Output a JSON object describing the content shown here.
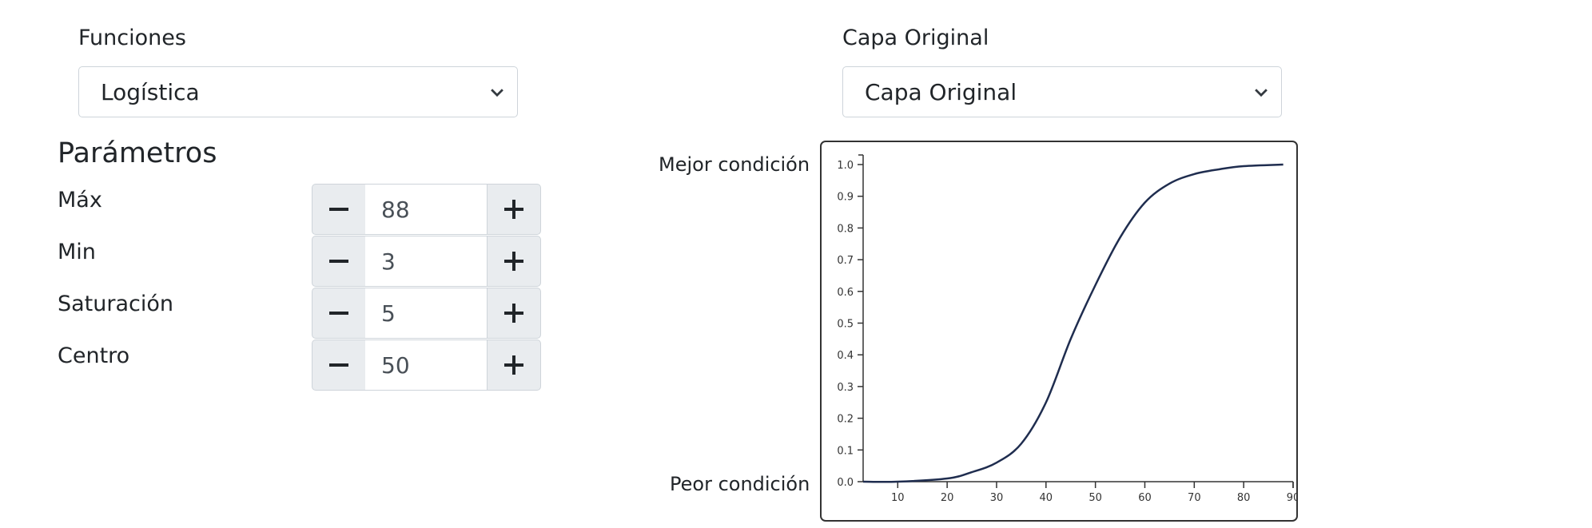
{
  "functions": {
    "label": "Funciones",
    "selected": "Logística"
  },
  "layer": {
    "label": "Capa Original",
    "selected": "Capa Original"
  },
  "params": {
    "title": "Parámetros",
    "items": [
      {
        "label": "Máx",
        "value": "88"
      },
      {
        "label": "Min",
        "value": "3"
      },
      {
        "label": "Saturación",
        "value": "5"
      },
      {
        "label": "Centro",
        "value": "50"
      }
    ]
  },
  "chart": {
    "best_label": "Mejor condición",
    "worst_label": "Peor condición"
  },
  "icons": {
    "minus": "minus-icon",
    "plus": "plus-icon",
    "dropdown": "chevron-down-icon"
  },
  "colors": {
    "curve": "#1f2d4f",
    "stepper_bg": "#e9ecef",
    "border": "#ced4da"
  },
  "chart_data": {
    "type": "line",
    "title": "",
    "xlabel": "",
    "ylabel": "",
    "xlim": [
      3,
      90
    ],
    "ylim": [
      0,
      1.0
    ],
    "xticks": [
      10,
      20,
      30,
      40,
      50,
      60,
      70,
      80,
      90
    ],
    "yticks": [
      0.0,
      0.1,
      0.2,
      0.3,
      0.4,
      0.5,
      0.6,
      0.7,
      0.8,
      0.9,
      1.0
    ],
    "yticklabels": [
      "0.0",
      "0.1",
      "0.2",
      "0.3",
      "0.4",
      "0.5",
      "0.6",
      "0.7",
      "0.8",
      "0.9",
      "1.0"
    ],
    "series": [
      {
        "x": [
          3,
          10,
          20,
          25,
          30,
          35,
          40,
          45,
          50,
          55,
          60,
          65,
          70,
          75,
          80,
          88
        ],
        "values": [
          0.0,
          0.0,
          0.01,
          0.03,
          0.06,
          0.12,
          0.25,
          0.45,
          0.62,
          0.77,
          0.88,
          0.94,
          0.97,
          0.985,
          0.995,
          1.0
        ]
      }
    ]
  }
}
